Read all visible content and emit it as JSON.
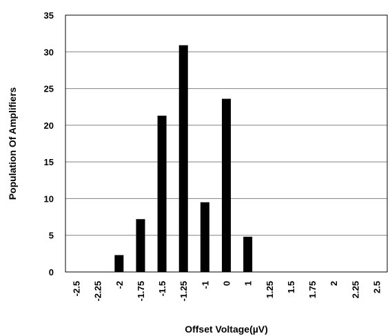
{
  "chart_data": {
    "type": "bar",
    "title": "",
    "xlabel": "Offset Voltage(µV)",
    "ylabel": "Population Of Amplifiers",
    "categories": [
      "-2.5",
      "-2.25",
      "-2",
      "-1.75",
      "-1.5",
      "-1.25",
      "-1",
      "0",
      "1",
      "1.25",
      "1.5",
      "1.75",
      "2",
      "2.25",
      "2.5"
    ],
    "values": [
      0,
      0,
      2.3,
      7.2,
      21.3,
      30.9,
      9.5,
      23.6,
      4.8,
      0,
      0,
      0,
      0,
      0,
      0
    ],
    "ylim": [
      0,
      35
    ],
    "yticks": [
      0,
      5,
      10,
      15,
      20,
      25,
      30,
      35
    ],
    "grid": true,
    "legend": "none",
    "bar_color": "#000000",
    "grid_color": "#808080"
  }
}
